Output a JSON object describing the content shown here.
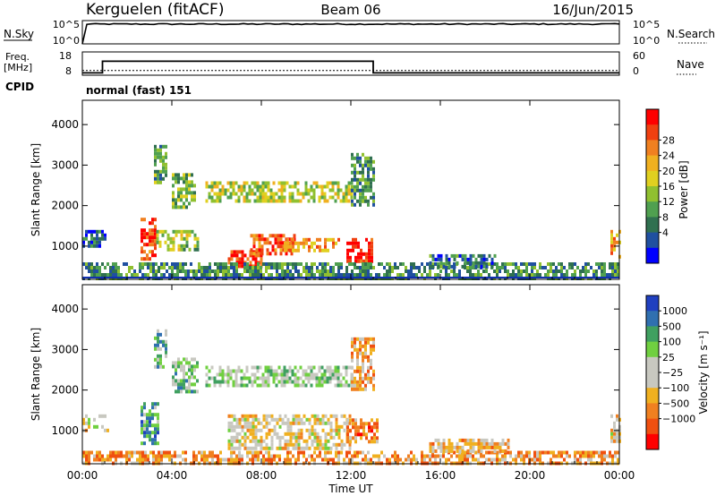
{
  "header": {
    "station": "Kerguelen (fitACF)",
    "beam": "Beam 06",
    "date": "16/Jun/2015"
  },
  "nsky_panel": {
    "label": "N.Sky",
    "right_label": "N.Search",
    "left_ticks": [
      "10^5",
      "10^0"
    ],
    "right_ticks": [
      "10^5",
      "10^0"
    ]
  },
  "freq_panel": {
    "left_label_1": "Freq.",
    "left_label_2": "[MHz]",
    "right_label": "Nave",
    "left_ticks": [
      "18",
      "8"
    ],
    "right_ticks": [
      "60",
      "0"
    ]
  },
  "cpid": {
    "label": "CPID",
    "text": "normal (fast) 151"
  },
  "power_colorbar": {
    "title": "Power [dB]",
    "ticks": [
      "28",
      "24",
      "20",
      "16",
      "12",
      "8",
      "4"
    ],
    "colors": [
      "#ff0000",
      "#f04010",
      "#f08020",
      "#f0b020",
      "#e0d020",
      "#90c030",
      "#50a050",
      "#307050",
      "#2050a0",
      "#0000ff"
    ]
  },
  "velocity_colorbar": {
    "title": "Velocity [m s⁻¹]",
    "ticks": [
      "1000",
      "500",
      "100",
      "25",
      "−25",
      "−100",
      "−500",
      "−1000"
    ],
    "colors": [
      "#2040c0",
      "#3070b0",
      "#40a060",
      "#70d040",
      "#c8c8c0",
      "#c8c8c0",
      "#f0b020",
      "#f08020",
      "#f05010",
      "#ff0000"
    ]
  },
  "chart_data": {
    "type": "heatmap",
    "xlabel": "Time UT",
    "ylabel": "Slant Range [km]",
    "x_ticks": [
      "00:00",
      "04:00",
      "08:00",
      "12:00",
      "16:00",
      "20:00",
      "00:00"
    ],
    "x_tick_hours": [
      0,
      4,
      8,
      12,
      16,
      20,
      24
    ],
    "xlim_hours": [
      0,
      24
    ],
    "y_ticks": [
      1000,
      2000,
      3000,
      4000
    ],
    "ylim": [
      180,
      4600
    ],
    "nsky_level": 0.85,
    "freq_steps": [
      {
        "from_hour": 0,
        "to_hour": 0.9,
        "value": 9
      },
      {
        "from_hour": 0.9,
        "to_hour": 13,
        "value": 14
      },
      {
        "from_hour": 13,
        "to_hour": 24,
        "value": 9
      }
    ],
    "nave_level": 12,
    "power_regions": [
      {
        "t0": 2.6,
        "t1": 3.3,
        "r0": 700,
        "r1": 1700,
        "level": 0.85
      },
      {
        "t0": 3.3,
        "t1": 5.2,
        "r0": 900,
        "r1": 1400,
        "level": 0.45
      },
      {
        "t0": 6.5,
        "t1": 8.0,
        "r0": 500,
        "r1": 900,
        "level": 0.9
      },
      {
        "t0": 7.5,
        "t1": 9.5,
        "r0": 800,
        "r1": 1300,
        "level": 0.8
      },
      {
        "t0": 9.0,
        "t1": 11.5,
        "r0": 900,
        "r1": 1200,
        "level": 0.7
      },
      {
        "t0": 11.8,
        "t1": 13.0,
        "r0": 600,
        "r1": 1200,
        "level": 0.95
      },
      {
        "t0": 3.2,
        "t1": 3.8,
        "r0": 2600,
        "r1": 3500,
        "level": 0.35
      },
      {
        "t0": 4.0,
        "t1": 5.0,
        "r0": 2000,
        "r1": 2800,
        "level": 0.4
      },
      {
        "t0": 5.5,
        "t1": 12.0,
        "r0": 2100,
        "r1": 2600,
        "level": 0.5
      },
      {
        "t0": 12.0,
        "t1": 13.0,
        "r0": 2000,
        "r1": 3300,
        "level": 0.3
      },
      {
        "t0": 0.0,
        "t1": 1.0,
        "r0": 1000,
        "r1": 1400,
        "level": 0.2
      },
      {
        "t0": 0.0,
        "t1": 24.0,
        "r0": 200,
        "r1": 600,
        "level": 0.3
      },
      {
        "t0": 15.5,
        "t1": 18.5,
        "r0": 500,
        "r1": 800,
        "level": 0.25
      },
      {
        "t0": 23.6,
        "t1": 24.0,
        "r0": 700,
        "r1": 1400,
        "level": 0.7
      }
    ],
    "velocity_regions": [
      {
        "t0": 2.6,
        "t1": 3.4,
        "r0": 700,
        "r1": 1700,
        "vel": 0.75
      },
      {
        "t0": 3.2,
        "t1": 3.8,
        "r0": 2600,
        "r1": 3500,
        "vel": 0.7
      },
      {
        "t0": 4.0,
        "t1": 5.2,
        "r0": 2000,
        "r1": 2800,
        "vel": 0.65
      },
      {
        "t0": 5.5,
        "t1": 12.0,
        "r0": 2100,
        "r1": 2600,
        "vel": 0.6
      },
      {
        "t0": 6.5,
        "t1": 12.0,
        "r0": 600,
        "r1": 1400,
        "vel": 0.45
      },
      {
        "t0": 11.8,
        "t1": 13.2,
        "r0": 700,
        "r1": 1300,
        "vel": 0.25
      },
      {
        "t0": 12.0,
        "t1": 13.0,
        "r0": 2000,
        "r1": 3300,
        "vel": 0.3
      },
      {
        "t0": 0.0,
        "t1": 1.2,
        "r0": 1000,
        "r1": 1400,
        "vel": 0.45
      },
      {
        "t0": 0.0,
        "t1": 24.0,
        "r0": 200,
        "r1": 500,
        "vel": 0.3
      },
      {
        "t0": 15.5,
        "t1": 19.0,
        "r0": 500,
        "r1": 800,
        "vel": 0.35
      },
      {
        "t0": 23.6,
        "t1": 24.0,
        "r0": 700,
        "r1": 1400,
        "vel": 0.45
      }
    ]
  }
}
